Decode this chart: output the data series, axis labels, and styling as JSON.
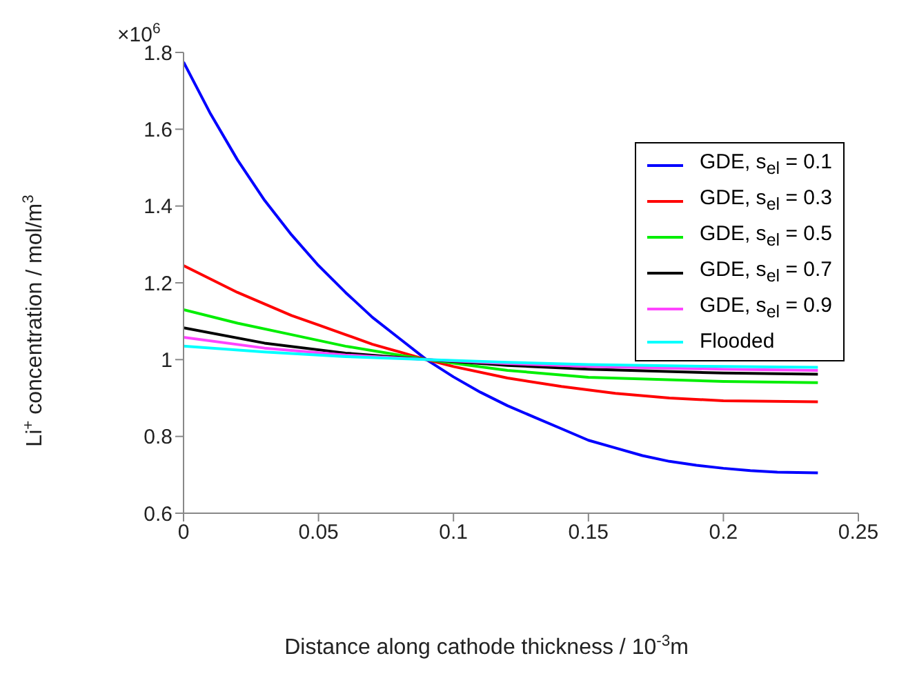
{
  "chart_data": {
    "type": "line",
    "xlabel": "Distance along cathode thickness /  10$^{-3}$m",
    "ylabel": "Li$^{+}$ concentration  /  mol/m$^{3}$",
    "annotations": [
      "×10$^{6}$"
    ],
    "xlim": [
      0,
      0.25
    ],
    "xticks": [
      0,
      0.05,
      0.1,
      0.15,
      0.2,
      0.25
    ],
    "ylim": [
      0.6,
      1.8
    ],
    "yticks": [
      0.6,
      0.8,
      1,
      1.2,
      1.4,
      1.6,
      1.8
    ],
    "legend": "top right",
    "marker": "none",
    "line_style": "solid",
    "series": [
      {
        "name": "GDE, s$_{el}$ = 0.1",
        "color": "#0000ff",
        "x": [
          0,
          0.01,
          0.02,
          0.03,
          0.04,
          0.05,
          0.06,
          0.07,
          0.08,
          0.09,
          0.1,
          0.11,
          0.12,
          0.13,
          0.14,
          0.15,
          0.16,
          0.17,
          0.18,
          0.19,
          0.2,
          0.21,
          0.22,
          0.235
        ],
        "values": [
          1.775,
          1.64,
          1.52,
          1.415,
          1.325,
          1.245,
          1.175,
          1.11,
          1.055,
          1.0,
          0.955,
          0.915,
          0.88,
          0.85,
          0.82,
          0.79,
          0.77,
          0.75,
          0.735,
          0.725,
          0.717,
          0.711,
          0.707,
          0.705
        ]
      },
      {
        "name": "GDE, s$_{el}$ = 0.3",
        "color": "#ff0000",
        "x": [
          0,
          0.01,
          0.02,
          0.03,
          0.04,
          0.05,
          0.06,
          0.07,
          0.08,
          0.09,
          0.1,
          0.12,
          0.14,
          0.16,
          0.18,
          0.2,
          0.235
        ],
        "values": [
          1.245,
          1.21,
          1.175,
          1.145,
          1.115,
          1.09,
          1.065,
          1.04,
          1.02,
          1.0,
          0.982,
          0.952,
          0.93,
          0.912,
          0.9,
          0.893,
          0.89
        ]
      },
      {
        "name": "GDE, s$_{el}$ = 0.5",
        "color": "#00ee00",
        "x": [
          0,
          0.02,
          0.04,
          0.06,
          0.09,
          0.12,
          0.15,
          0.2,
          0.235
        ],
        "values": [
          1.13,
          1.095,
          1.065,
          1.035,
          1.0,
          0.972,
          0.954,
          0.943,
          0.94
        ]
      },
      {
        "name": "GDE, s$_{el}$ = 0.7",
        "color": "#000000",
        "x": [
          0,
          0.03,
          0.06,
          0.09,
          0.12,
          0.15,
          0.2,
          0.235
        ],
        "values": [
          1.083,
          1.043,
          1.017,
          1.0,
          0.985,
          0.975,
          0.965,
          0.962
        ]
      },
      {
        "name": "GDE, s$_{el}$ = 0.9",
        "color": "#ff44ff",
        "x": [
          0,
          0.03,
          0.06,
          0.09,
          0.12,
          0.15,
          0.2,
          0.235
        ],
        "values": [
          1.058,
          1.03,
          1.012,
          1.0,
          0.99,
          0.982,
          0.975,
          0.972
        ]
      },
      {
        "name": "Flooded",
        "color": "#00ffff",
        "x": [
          0,
          0.03,
          0.06,
          0.09,
          0.12,
          0.15,
          0.2,
          0.235
        ],
        "values": [
          1.035,
          1.02,
          1.008,
          1.0,
          0.993,
          0.987,
          0.982,
          0.98
        ]
      }
    ]
  }
}
